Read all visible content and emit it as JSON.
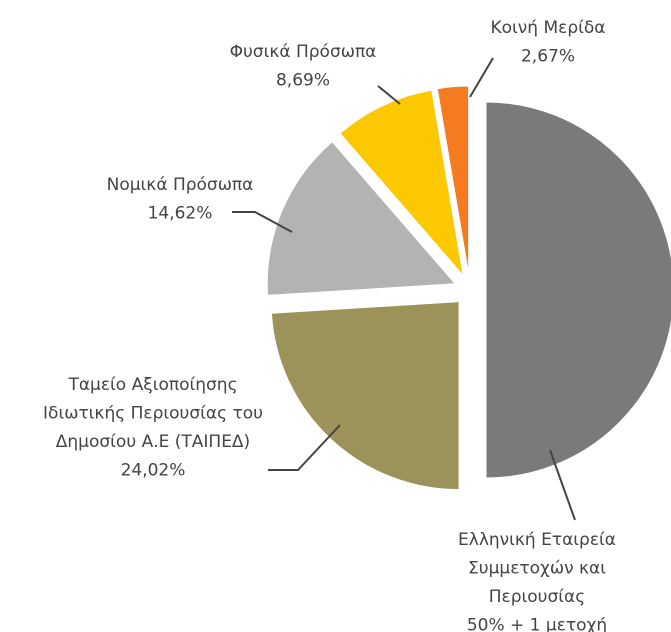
{
  "chart_data": {
    "type": "pie",
    "categories": [
      [
        "Ελληνική Εταιρεία",
        "Συμμετοχών και",
        "Περιουσίας"
      ],
      [
        "Ταμείο Αξιοποίησης",
        "Ιδιωτικής Περιουσίας του",
        "Δημοσίου Α.Ε (ΤΑΙΠΕΔ)"
      ],
      [
        "Νομικά Πρόσωπα"
      ],
      [
        "Φυσικά Πρόσωπα"
      ],
      [
        "Κοινή Μερίδα"
      ]
    ],
    "values": [
      50,
      24.02,
      14.62,
      8.69,
      2.67
    ],
    "value_labels": [
      "50% + 1 μετοχή",
      "24,02%",
      "14,62%",
      "8,69%",
      "2,67%"
    ],
    "colors": [
      "#7a7a7a",
      "#9c935a",
      "#b3b4b2",
      "#fcc800",
      "#f47b20"
    ]
  }
}
